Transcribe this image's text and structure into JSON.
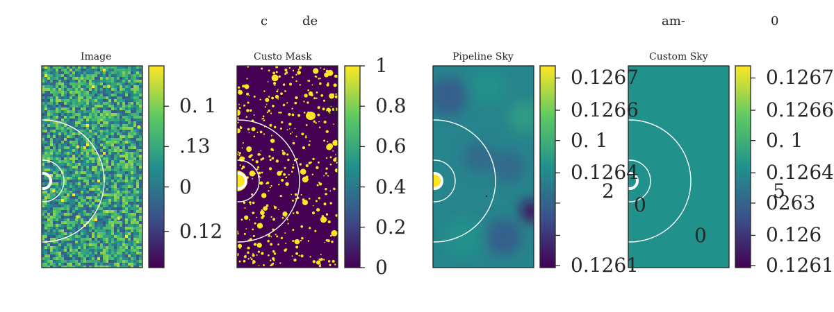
{
  "figure": {
    "suptitle_fragments": [
      "c",
      "de",
      "am-",
      "0"
    ],
    "stray_labels": [
      "5",
      "2",
      "0",
      "5",
      "0",
      "0"
    ]
  },
  "chart_data": [
    {
      "type": "heatmap",
      "title": "Image",
      "colormap": "viridis",
      "colorbar_ticks": [
        "0.  1",
        ".13",
        "0",
        "0.12"
      ],
      "colorbar_tick_fractions": [
        0.8,
        0.6,
        0.4,
        0.18
      ],
      "field": "noise",
      "grid": false
    },
    {
      "type": "heatmap",
      "title": "Custo Mask",
      "colormap": "viridis",
      "colorbar_ticks": [
        "1",
        "0.8",
        "0.6",
        "0.4",
        "0.2",
        "0"
      ],
      "colorbar_tick_fractions": [
        1.0,
        0.8,
        0.6,
        0.4,
        0.2,
        0.0
      ],
      "field": "mask",
      "grid": false
    },
    {
      "type": "heatmap",
      "title": "Pipeline Sky",
      "colormap": "viridis",
      "colorbar_ticks": [
        "0.1267",
        "0.1266",
        "0.  1",
        "0.1264",
        "",
        "",
        "0.1261"
      ],
      "colorbar_tick_fractions": [
        0.94,
        0.78,
        0.63,
        0.47,
        0.32,
        0.16,
        0.01
      ],
      "field": "smooth-sky",
      "grid": false
    },
    {
      "type": "heatmap",
      "title": "Custom Sky",
      "colormap": "viridis",
      "colorbar_ticks": [
        "0.1267",
        "0.1266",
        "0.  1",
        "0.1264",
        "0263",
        "0.126",
        "0.1261"
      ],
      "colorbar_tick_fractions": [
        0.94,
        0.78,
        0.63,
        0.47,
        0.32,
        0.16,
        0.01
      ],
      "field": "constant",
      "constant_level": 0.5,
      "grid": false
    }
  ],
  "colors": {
    "axes_edge": "#262626",
    "annulus": "#ffffff",
    "viridis": [
      "#440154",
      "#3b528b",
      "#21918c",
      "#5ec962",
      "#fde725"
    ]
  }
}
